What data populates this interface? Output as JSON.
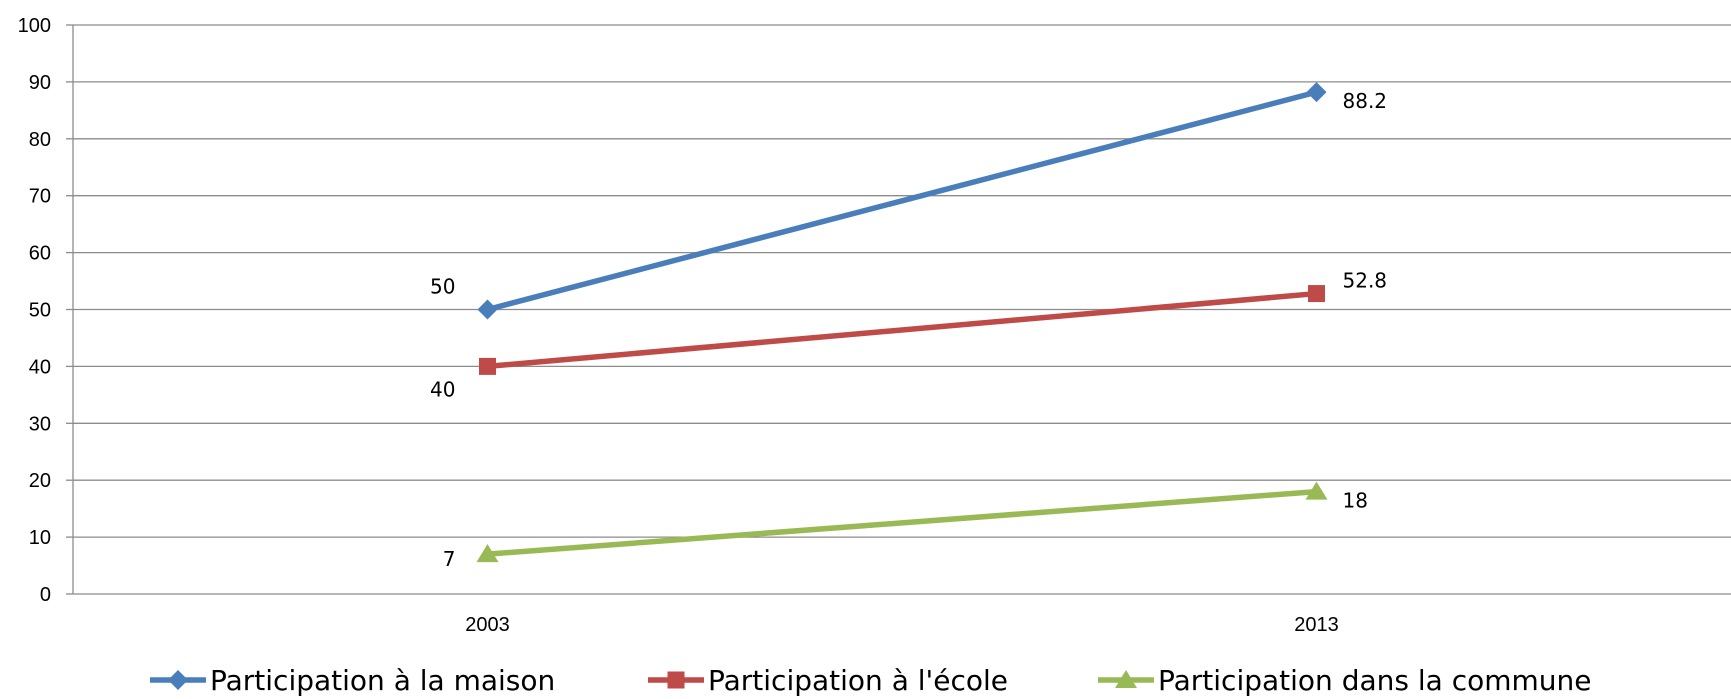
{
  "chart_data": {
    "type": "line",
    "categories": [
      "2003",
      "2013"
    ],
    "ylim": [
      0,
      100
    ],
    "yticks": [
      0,
      10,
      20,
      30,
      40,
      50,
      60,
      70,
      80,
      90,
      100
    ],
    "grid": true,
    "legend_position": "bottom",
    "series": [
      {
        "name": "Participation à la maison",
        "values": [
          50,
          88.2
        ],
        "labels": [
          "50",
          "88.2"
        ],
        "color": "#4A7EBB",
        "marker": "diamond"
      },
      {
        "name": "Participation à l'école",
        "values": [
          40,
          52.8
        ],
        "labels": [
          "40",
          "52.8"
        ],
        "color": "#BE4B48",
        "marker": "square"
      },
      {
        "name": "Participation dans la commune",
        "values": [
          7,
          18
        ],
        "labels": [
          "7",
          "18"
        ],
        "color": "#98B954",
        "marker": "triangle"
      }
    ]
  }
}
